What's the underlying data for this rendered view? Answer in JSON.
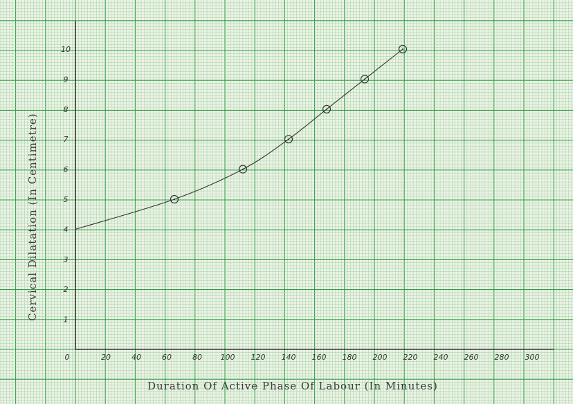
{
  "chart_data": {
    "type": "line",
    "title": "",
    "xlabel": "Duration Of Active Phase Of Labour (In Minutes)",
    "ylabel": "Cervical Dilatation (In Centimetre)",
    "x_ticks": [
      "0",
      "20",
      "40",
      "60",
      "80",
      "100",
      "120",
      "140",
      "160",
      "180",
      "200",
      "220",
      "240",
      "260",
      "280",
      "300"
    ],
    "y_ticks": [
      "1",
      "2",
      "3",
      "4",
      "5",
      "6",
      "7",
      "8",
      "9",
      "10"
    ],
    "xlim": [
      0,
      300
    ],
    "ylim": [
      0,
      10
    ],
    "series": [
      {
        "x": [
          0,
          65,
          110,
          140,
          165,
          190,
          215
        ],
        "y": [
          4,
          5,
          6,
          7,
          8,
          9,
          10
        ],
        "marker_x": [
          65,
          110,
          140,
          165,
          190,
          215
        ],
        "marker_y": [
          5,
          6,
          7,
          8,
          9,
          10
        ]
      }
    ],
    "grid": true,
    "legend": "none",
    "colors": {
      "paper": "#eef2e6",
      "grid_major": "#2f9e48",
      "grid_minor": "#8fcf98",
      "ink": "#333333"
    }
  }
}
